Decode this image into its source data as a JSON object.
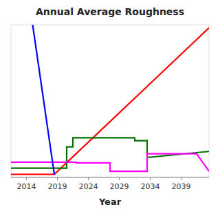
{
  "chart_data": {
    "type": "line",
    "title": "Annual Average Roughness",
    "x_label": "Year",
    "xlim": [
      2011.5,
      2043.5
    ],
    "ylim": [
      0,
      1.0
    ],
    "xticks": [
      2014,
      2019,
      2024,
      2029,
      2034,
      2039
    ],
    "grid": false,
    "tick_labels": "x",
    "series": [
      {
        "color": "#ff0000",
        "x": [
          2011.5,
          2018.5,
          2043.5
        ],
        "values": [
          0.02,
          0.02,
          0.98
        ]
      },
      {
        "color": "#007000",
        "x": [
          2011.5,
          2020.5,
          2020.5,
          2021.5,
          2021.5,
          2031.5,
          2031.5,
          2033.5,
          2033.5,
          2043.5
        ],
        "values": [
          0.06,
          0.06,
          0.2,
          0.2,
          0.26,
          0.26,
          0.24,
          0.24,
          0.13,
          0.17
        ]
      },
      {
        "color": "#ff00ff",
        "x": [
          2011.5,
          2022.0,
          2022.0,
          2027.5,
          2027.5,
          2033.5,
          2033.5,
          2041.5,
          2041.5,
          2043.5
        ],
        "values": [
          0.1,
          0.1,
          0.095,
          0.095,
          0.04,
          0.04,
          0.155,
          0.155,
          0.155,
          0.04
        ]
      },
      {
        "color": "#0000ff",
        "x": [
          2015,
          2018.5
        ],
        "values": [
          1.0,
          0.02
        ]
      }
    ]
  }
}
